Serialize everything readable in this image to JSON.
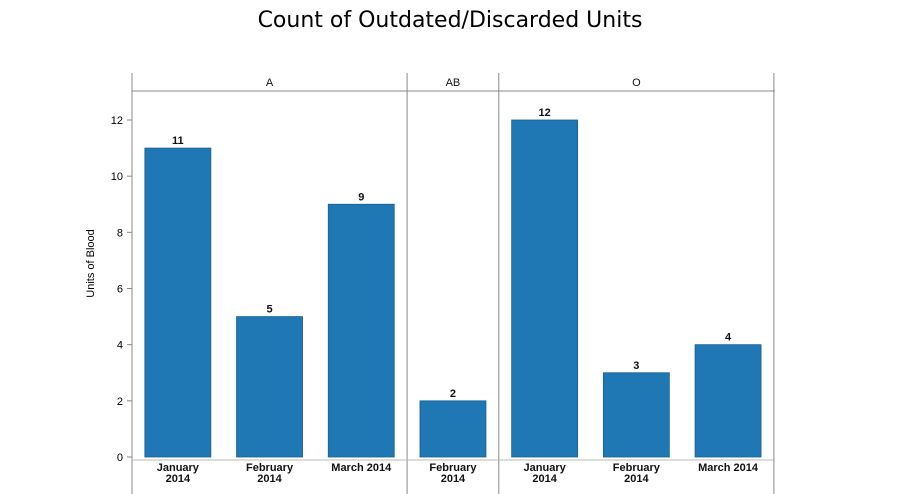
{
  "chart_data": {
    "type": "bar",
    "title": "Count of Outdated/Discarded Units",
    "ylabel": "Units of Blood",
    "xlabel": "",
    "ylim": [
      0,
      13
    ],
    "yticks": [
      0,
      2,
      4,
      6,
      8,
      10,
      12
    ],
    "bar_color": "#1f77b4",
    "panels": [
      {
        "name": "A",
        "categories": [
          [
            "January",
            "2014"
          ],
          [
            "February",
            "2014"
          ],
          [
            "March 2014"
          ]
        ],
        "values": [
          11,
          5,
          9
        ]
      },
      {
        "name": "AB",
        "categories": [
          [
            "February",
            "2014"
          ]
        ],
        "values": [
          2
        ]
      },
      {
        "name": "O",
        "categories": [
          [
            "January",
            "2014"
          ],
          [
            "February",
            "2014"
          ],
          [
            "March 2014"
          ]
        ],
        "values": [
          12,
          3,
          4
        ]
      }
    ]
  }
}
